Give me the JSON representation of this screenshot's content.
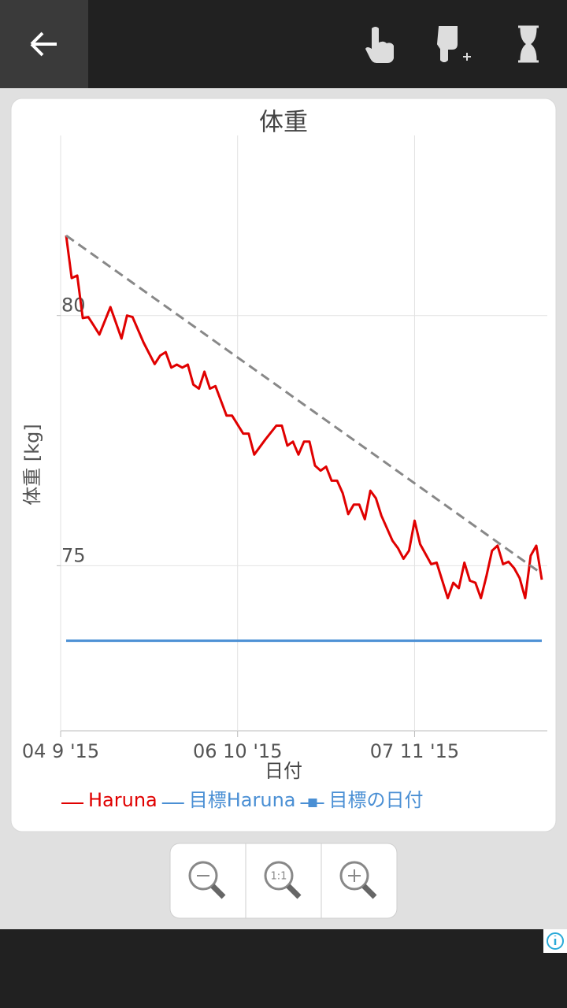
{
  "chart_data": {
    "type": "line",
    "title": "体重",
    "x_label": "日付",
    "y_label": "体重 [kg]",
    "xlim": [
      "2015-09-04",
      "2015-12-01"
    ],
    "xticks": [
      {
        "value": "2015-09-04",
        "label": "04 9 '15"
      },
      {
        "value": "2015-10-06",
        "label": "06 10 '15"
      },
      {
        "value": "2015-11-07",
        "label": "07 11 '15"
      }
    ],
    "ylim": [
      71.7,
      83.6
    ],
    "yticks": [
      75,
      80
    ],
    "grid": true,
    "series": [
      {
        "name": "Haruna",
        "color": "#e00000",
        "x": [
          "2015-09-05",
          "2015-09-06",
          "2015-09-07",
          "2015-09-08",
          "2015-09-09",
          "2015-09-10",
          "2015-09-11",
          "2015-09-13",
          "2015-09-15",
          "2015-09-16",
          "2015-09-17",
          "2015-09-19",
          "2015-09-21",
          "2015-09-22",
          "2015-09-23",
          "2015-09-24",
          "2015-09-25",
          "2015-09-26",
          "2015-09-27",
          "2015-09-28",
          "2015-09-29",
          "2015-09-30",
          "2015-10-01",
          "2015-10-02",
          "2015-10-04",
          "2015-10-05",
          "2015-10-07",
          "2015-10-08",
          "2015-10-09",
          "2015-10-11",
          "2015-10-13",
          "2015-10-14",
          "2015-10-15",
          "2015-10-16",
          "2015-10-17",
          "2015-10-18",
          "2015-10-19",
          "2015-10-20",
          "2015-10-21",
          "2015-10-22",
          "2015-10-23",
          "2015-10-24",
          "2015-10-25",
          "2015-10-26",
          "2015-10-27",
          "2015-10-28",
          "2015-10-29",
          "2015-10-30",
          "2015-10-31",
          "2015-11-01",
          "2015-11-03",
          "2015-11-04",
          "2015-11-05",
          "2015-11-06",
          "2015-11-07",
          "2015-11-08",
          "2015-11-10",
          "2015-11-11",
          "2015-11-13",
          "2015-11-14",
          "2015-11-15",
          "2015-11-16",
          "2015-11-17",
          "2015-11-18",
          "2015-11-19",
          "2015-11-20",
          "2015-11-21",
          "2015-11-22",
          "2015-11-23",
          "2015-11-24",
          "2015-11-25",
          "2015-11-26",
          "2015-11-27",
          "2015-11-28",
          "2015-11-29",
          "2015-11-30"
        ],
        "values": [
          81.6,
          80.75,
          80.8,
          79.95,
          79.97,
          79.8,
          79.62,
          80.17,
          79.54,
          80.0,
          79.97,
          79.46,
          79.03,
          79.2,
          79.27,
          78.96,
          79.02,
          78.96,
          79.02,
          78.62,
          78.54,
          78.88,
          78.54,
          78.59,
          78.0,
          78.0,
          77.64,
          77.64,
          77.22,
          77.52,
          77.8,
          77.8,
          77.4,
          77.48,
          77.22,
          77.48,
          77.48,
          77.0,
          76.9,
          76.98,
          76.7,
          76.7,
          76.45,
          76.03,
          76.22,
          76.22,
          75.93,
          76.5,
          76.35,
          76.0,
          75.5,
          75.35,
          75.14,
          75.3,
          75.9,
          75.43,
          75.03,
          75.06,
          74.35,
          74.66,
          74.55,
          75.06,
          74.7,
          74.66,
          74.35,
          74.8,
          75.3,
          75.4,
          75.03,
          75.08,
          74.95,
          74.75,
          74.35,
          75.2,
          75.4,
          74.72
        ]
      },
      {
        "name": "目標Haruna",
        "color": "#4a8fd4",
        "x": [
          "2015-09-05",
          "2015-11-30"
        ],
        "values": [
          73.5,
          73.5
        ]
      }
    ],
    "trend": {
      "color": "#888888",
      "x": [
        "2015-09-05",
        "2015-11-30"
      ],
      "values": [
        81.6,
        74.84
      ]
    },
    "legend_extra": {
      "name": "目標の日付",
      "color": "#4a8fd4"
    }
  },
  "zoom": {
    "reset_label": "1:1"
  }
}
